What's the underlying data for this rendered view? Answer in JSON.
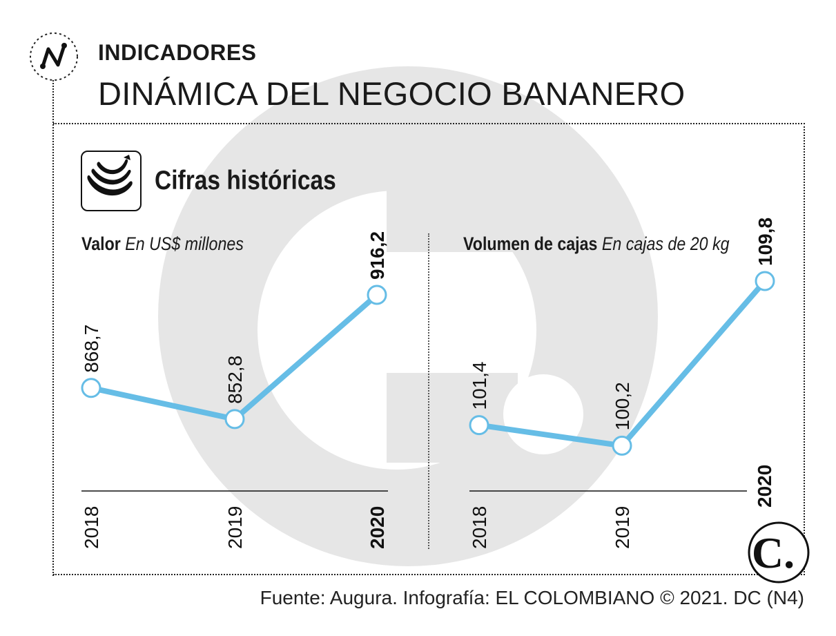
{
  "header": {
    "kicker": "INDICADORES",
    "title": "DINÁMICA DEL NEGOCIO BANANERO"
  },
  "section": {
    "icon": "banana-icon",
    "title": "Cifras históricas"
  },
  "colors": {
    "line": "#66bde6",
    "watermark": "#e6e6e6",
    "text": "#1a1a1a"
  },
  "chart_data": [
    {
      "type": "line",
      "title": "Valor",
      "subtitle": "En US$ millones",
      "categories": [
        "2018",
        "2019",
        "2020"
      ],
      "values": [
        868.7,
        852.8,
        916.2
      ],
      "value_labels": [
        "868,7",
        "852,8",
        "916,2"
      ],
      "highlight": "2020",
      "ylim": [
        820,
        925
      ],
      "grid": false
    },
    {
      "type": "line",
      "title": "Volumen de cajas",
      "subtitle": "En cajas de 20 kg",
      "categories": [
        "2018",
        "2019",
        "2020"
      ],
      "values": [
        101.4,
        100.2,
        109.8
      ],
      "value_labels": [
        "101,4",
        "100,2",
        "109,8"
      ],
      "highlight": "2020",
      "ylim": [
        98,
        110
      ],
      "grid": false
    }
  ],
  "footer": {
    "source": "Fuente: Augura. Infografía: EL COLOMBIANO © 2021. DC (N4)",
    "logo": "C."
  }
}
